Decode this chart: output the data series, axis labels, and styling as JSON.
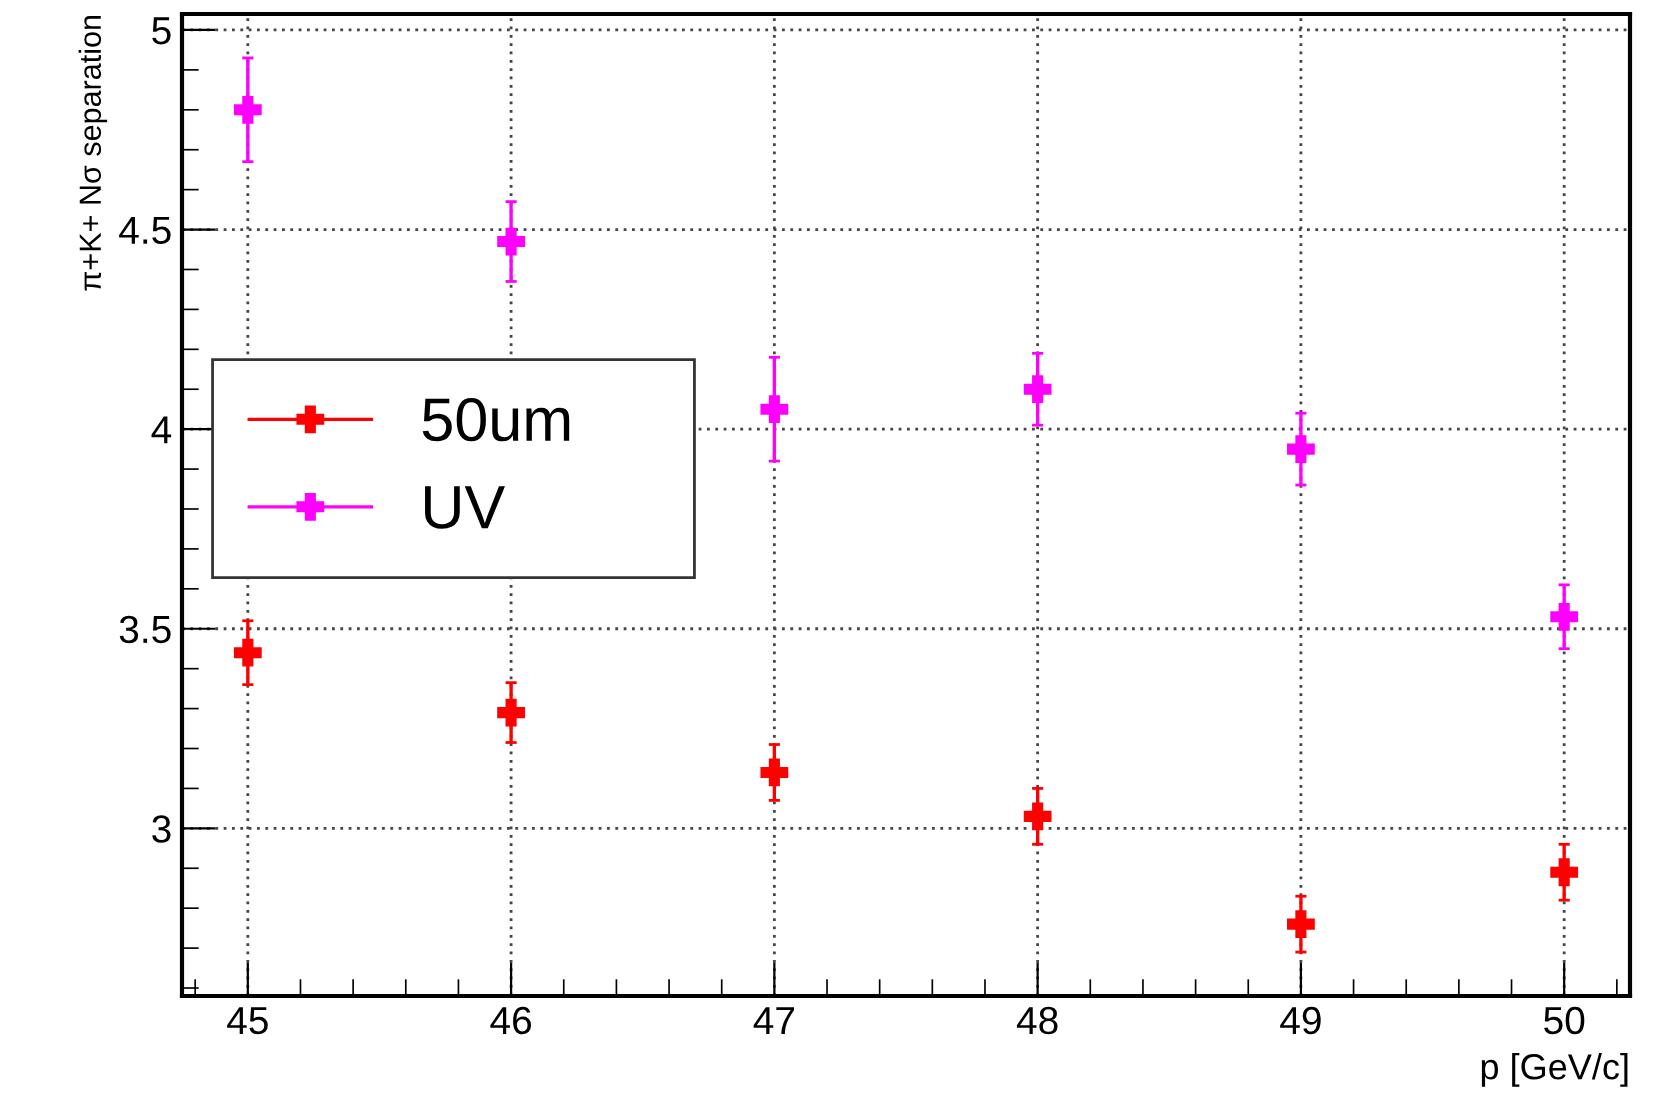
{
  "chart_data": {
    "type": "scatter",
    "xlabel": "p [GeV/c]",
    "ylabel": "π+K+ Nσ separation",
    "x": [
      45,
      46,
      47,
      48,
      49,
      50
    ],
    "series": [
      {
        "name": "50um",
        "color": "#ff0000",
        "values": [
          3.44,
          3.29,
          3.14,
          3.03,
          2.76,
          2.89
        ],
        "errors": [
          0.08,
          0.075,
          0.07,
          0.07,
          0.07,
          0.07
        ]
      },
      {
        "name": "UV",
        "color": "#ff00ff",
        "values": [
          4.8,
          4.47,
          4.05,
          4.1,
          3.95,
          3.53
        ],
        "errors": [
          0.13,
          0.1,
          0.13,
          0.09,
          0.09,
          0.08
        ]
      }
    ],
    "xlim": [
      44.75,
      50.25
    ],
    "xticks": [
      45,
      46,
      47,
      48,
      49,
      50
    ],
    "ylim": [
      2.58,
      5.04
    ],
    "yticks": [
      3,
      3.5,
      4,
      4.5,
      5
    ],
    "grid": true,
    "legend": "left",
    "marker": "cross"
  }
}
